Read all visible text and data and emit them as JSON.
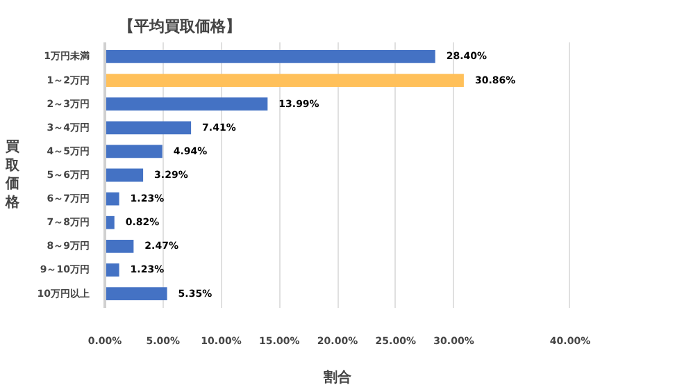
{
  "chart_data": {
    "type": "bar",
    "orientation": "horizontal",
    "title": "【平均買取価格】",
    "xlabel": "割合",
    "ylabel": "買取価格",
    "categories": [
      "1万円未満",
      "1～2万円",
      "2～3万円",
      "3～4万円",
      "4～5万円",
      "5～6万円",
      "6～7万円",
      "7～8万円",
      "8～9万円",
      "9～10万円",
      "10万円以上"
    ],
    "values": [
      28.4,
      30.86,
      13.99,
      7.41,
      4.94,
      3.29,
      1.23,
      0.82,
      2.47,
      1.23,
      5.35
    ],
    "colors": [
      "#4472c4",
      "#ffc05a",
      "#4472c4",
      "#4472c4",
      "#4472c4",
      "#4472c4",
      "#4472c4",
      "#4472c4",
      "#4472c4",
      "#4472c4",
      "#4472c4"
    ],
    "value_labels": [
      "28.40%",
      "30.86%",
      "13.99%",
      "7.41%",
      "4.94%",
      "3.29%",
      "1.23%",
      "0.82%",
      "2.47%",
      "1.23%",
      "5.35%"
    ],
    "xlim": [
      0,
      40
    ],
    "xticks": [
      {
        "value": 0,
        "label": "0.00%"
      },
      {
        "value": 5,
        "label": "5.00%"
      },
      {
        "value": 10,
        "label": "10.00%"
      },
      {
        "value": 15,
        "label": "15.00%"
      },
      {
        "value": 20,
        "label": "20.00%"
      },
      {
        "value": 25,
        "label": "25.00%"
      },
      {
        "value": 30,
        "label": "30.00%"
      },
      {
        "value": 40,
        "label": "40.00%"
      }
    ],
    "grid": "x"
  }
}
